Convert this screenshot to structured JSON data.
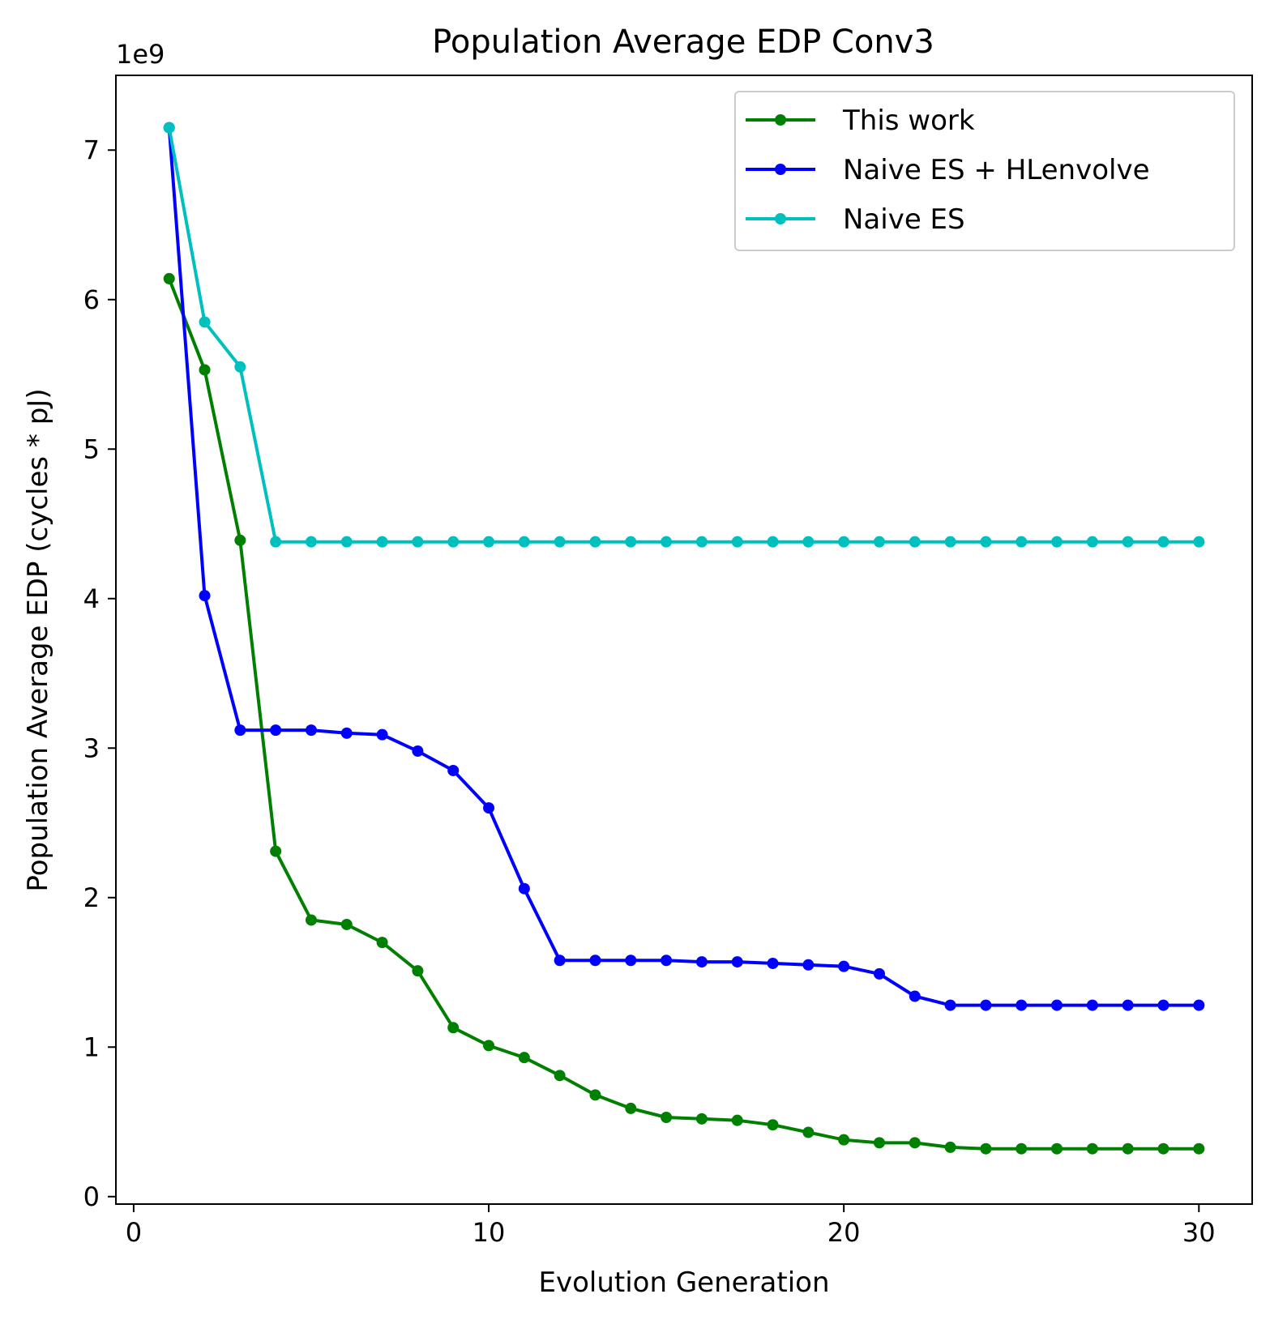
{
  "chart_data": {
    "type": "line",
    "title": "Population Average EDP Conv3",
    "xlabel": "Evolution Generation",
    "ylabel": "Population Average EDP (cycles * pJ)",
    "y_offset_label": "1e9",
    "xlim": [
      -0.5,
      31.5
    ],
    "ylim": [
      -0.05,
      7.5
    ],
    "xticks": [
      0,
      10,
      20,
      30
    ],
    "yticks": [
      0,
      1,
      2,
      3,
      4,
      5,
      6,
      7
    ],
    "grid": false,
    "legend_position": "top-right",
    "x": [
      1,
      2,
      3,
      4,
      5,
      6,
      7,
      8,
      9,
      10,
      11,
      12,
      13,
      14,
      15,
      16,
      17,
      18,
      19,
      20,
      21,
      22,
      23,
      24,
      25,
      26,
      27,
      28,
      29,
      30
    ],
    "series": [
      {
        "name": "This work",
        "color": "#008000",
        "values": [
          6.14,
          5.53,
          4.39,
          2.31,
          1.85,
          1.82,
          1.7,
          1.51,
          1.13,
          1.01,
          0.93,
          0.81,
          0.68,
          0.59,
          0.53,
          0.52,
          0.51,
          0.48,
          0.43,
          0.38,
          0.36,
          0.36,
          0.33,
          0.32,
          0.32,
          0.32,
          0.32,
          0.32,
          0.32,
          0.32
        ]
      },
      {
        "name": "Naive ES + HLenvolve",
        "color": "#0000ff",
        "values": [
          7.15,
          4.02,
          3.12,
          3.12,
          3.12,
          3.1,
          3.09,
          2.98,
          2.85,
          2.6,
          2.06,
          1.58,
          1.58,
          1.58,
          1.58,
          1.57,
          1.57,
          1.56,
          1.55,
          1.54,
          1.49,
          1.34,
          1.28,
          1.28,
          1.28,
          1.28,
          1.28,
          1.28,
          1.28,
          1.28
        ]
      },
      {
        "name": "Naive ES",
        "color": "#00bfbf",
        "values": [
          7.15,
          5.85,
          5.55,
          4.38,
          4.38,
          4.38,
          4.38,
          4.38,
          4.38,
          4.38,
          4.38,
          4.38,
          4.38,
          4.38,
          4.38,
          4.38,
          4.38,
          4.38,
          4.38,
          4.38,
          4.38,
          4.38,
          4.38,
          4.38,
          4.38,
          4.38,
          4.38,
          4.38,
          4.38,
          4.38
        ]
      }
    ]
  }
}
